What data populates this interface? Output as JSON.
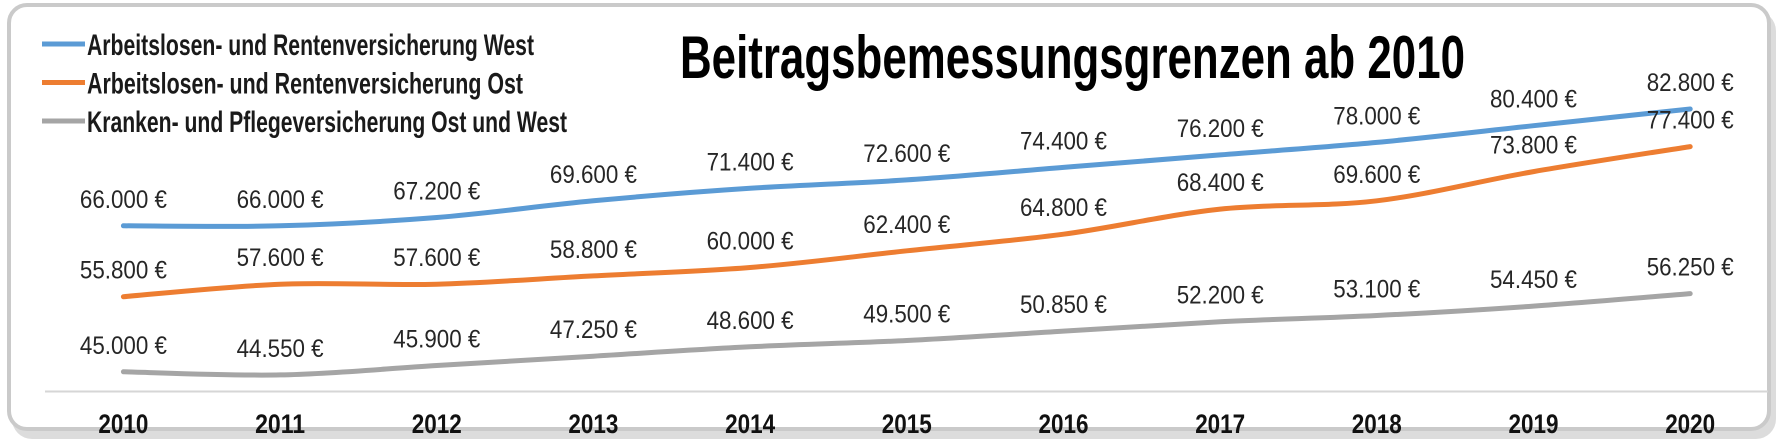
{
  "title": "Beitragsbemessungsgrenzen ab 2010",
  "legend": {
    "position": "top-left",
    "items": [
      {
        "key": "west",
        "label": "Arbeitslosen- und Rentenversicherung West",
        "color": "#5B9BD5"
      },
      {
        "key": "ost",
        "label": "Arbeitslosen- und Rentenversicherung Ost",
        "color": "#ED7D31"
      },
      {
        "key": "kranken",
        "label": "Kranken- und Pflegeversicherung Ost und West",
        "color": "#A5A5A5"
      }
    ]
  },
  "colors": {
    "axis_line": "#D6D6D6",
    "frame_border": "#CACACA",
    "frame_shadow": "#DCDCDC",
    "label_text": "#262626",
    "title_text": "#000000"
  },
  "chart_data": {
    "type": "line",
    "title": "Beitragsbemessungsgrenzen ab 2010",
    "xlabel": "",
    "ylabel": "",
    "unit": "€",
    "categories": [
      "2010",
      "2011",
      "2012",
      "2013",
      "2014",
      "2015",
      "2016",
      "2017",
      "2018",
      "2019",
      "2020"
    ],
    "series": [
      {
        "key": "west",
        "name": "Arbeitslosen- und Rentenversicherung West",
        "color": "#5B9BD5",
        "values": [
          66000,
          66000,
          67200,
          69600,
          71400,
          72600,
          74400,
          76200,
          78000,
          80400,
          82800
        ],
        "labels": [
          "66.000 €",
          "66.000 €",
          "67.200 €",
          "69.600 €",
          "71.400 €",
          "72.600 €",
          "74.400 €",
          "76.200 €",
          "78.000 €",
          "80.400 €",
          "82.800 €"
        ]
      },
      {
        "key": "ost",
        "name": "Arbeitslosen- und Rentenversicherung Ost",
        "color": "#ED7D31",
        "values": [
          55800,
          57600,
          57600,
          58800,
          60000,
          62400,
          64800,
          68400,
          69600,
          73800,
          77400
        ],
        "labels": [
          "55.800 €",
          "57.600 €",
          "57.600 €",
          "58.800 €",
          "60.000 €",
          "62.400 €",
          "64.800 €",
          "68.400 €",
          "69.600 €",
          "73.800 €",
          "77.400 €"
        ]
      },
      {
        "key": "kranken",
        "name": "Kranken- und Pflegeversicherung Ost und West",
        "color": "#A5A5A5",
        "values": [
          45000,
          44550,
          45900,
          47250,
          48600,
          49500,
          50850,
          52200,
          53100,
          54450,
          56250
        ],
        "labels": [
          "45.000 €",
          "44.550 €",
          "45.900 €",
          "47.250 €",
          "48.600 €",
          "49.500 €",
          "50.850 €",
          "52.200 €",
          "53.100 €",
          "54.450 €",
          "56.250 €"
        ]
      }
    ],
    "value_axis": {
      "visible": false,
      "approx_range": [
        42000,
        88000
      ]
    },
    "category_axis": {
      "visible": true
    },
    "gridlines": false,
    "legend_position": "top-left",
    "data_labels": "above",
    "smoothed_lines": true
  }
}
